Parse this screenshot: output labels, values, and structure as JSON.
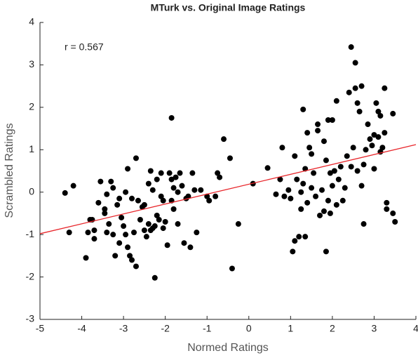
{
  "chart_data": {
    "type": "scatter",
    "title": "MTurk vs. Original Image Ratings",
    "xlabel": "Normed Ratings",
    "ylabel": "Scrambled Ratings",
    "annotation": "r = 0.567",
    "color": "#000000",
    "x": [
      -4.4,
      -4.3,
      -4.2,
      -3.9,
      -3.85,
      -3.8,
      -3.75,
      -3.7,
      -3.7,
      -3.6,
      -3.55,
      -3.45,
      -3.45,
      -3.4,
      -3.4,
      -3.35,
      -3.3,
      -3.25,
      -3.25,
      -3.2,
      -3.15,
      -3.1,
      -3.1,
      -3.05,
      -3.0,
      -2.95,
      -2.95,
      -2.9,
      -2.9,
      -2.85,
      -2.8,
      -2.8,
      -2.75,
      -2.7,
      -2.7,
      -2.65,
      -2.6,
      -2.55,
      -2.5,
      -2.5,
      -2.45,
      -2.4,
      -2.4,
      -2.35,
      -2.35,
      -2.3,
      -2.3,
      -2.25,
      -2.25,
      -2.2,
      -2.2,
      -2.15,
      -2.1,
      -2.1,
      -2.05,
      -2.05,
      -2.0,
      -1.95,
      -1.9,
      -1.85,
      -1.85,
      -1.85,
      -1.8,
      -1.8,
      -1.75,
      -1.7,
      -1.7,
      -1.65,
      -1.6,
      -1.55,
      -1.5,
      -1.45,
      -1.4,
      -1.35,
      -1.3,
      -1.25,
      -1.15,
      -1.0,
      -0.95,
      -0.8,
      -0.75,
      -0.7,
      -0.6,
      -0.45,
      -0.4,
      -0.25,
      0.1,
      0.45,
      0.65,
      0.75,
      0.8,
      0.85,
      0.95,
      1.0,
      1.05,
      1.1,
      1.1,
      1.15,
      1.2,
      1.25,
      1.25,
      1.3,
      1.3,
      1.35,
      1.35,
      1.4,
      1.4,
      1.45,
      1.5,
      1.5,
      1.55,
      1.6,
      1.65,
      1.65,
      1.7,
      1.75,
      1.8,
      1.8,
      1.85,
      1.85,
      1.9,
      1.9,
      1.95,
      1.95,
      2.0,
      2.0,
      2.05,
      2.1,
      2.1,
      2.15,
      2.2,
      2.25,
      2.3,
      2.35,
      2.4,
      2.45,
      2.45,
      2.5,
      2.55,
      2.55,
      2.6,
      2.6,
      2.65,
      2.7,
      2.7,
      2.75,
      2.75,
      2.8,
      2.85,
      2.9,
      2.95,
      3.0,
      3.0,
      3.05,
      3.1,
      3.1,
      3.15,
      3.15,
      3.2,
      3.25,
      3.25,
      3.3,
      3.3,
      3.45,
      3.45,
      3.5
    ],
    "values": [
      -0.02,
      -0.95,
      0.15,
      -1.55,
      -0.95,
      -0.65,
      -0.65,
      -0.9,
      -1.1,
      -0.25,
      0.25,
      -0.5,
      -0.4,
      -0.05,
      -0.95,
      -0.75,
      0.25,
      0.1,
      -1.0,
      -1.5,
      -0.3,
      -0.15,
      -1.2,
      -0.6,
      -0.8,
      0.0,
      -1.0,
      0.55,
      -1.3,
      -1.5,
      -0.15,
      -1.6,
      -0.95,
      0.8,
      -1.75,
      -0.2,
      -0.65,
      -0.35,
      -0.3,
      -0.9,
      -1.05,
      0.2,
      -0.75,
      0.5,
      -0.9,
      -0.85,
      0.05,
      -2.02,
      -0.8,
      0.3,
      -0.55,
      -0.65,
      0.45,
      -0.1,
      -0.85,
      -0.2,
      -0.7,
      -1.25,
      0.45,
      1.75,
      -0.2,
      0.3,
      0.1,
      -0.4,
      0.35,
      0.0,
      -0.75,
      0.45,
      0.15,
      -1.2,
      -0.15,
      -0.1,
      -1.3,
      0.45,
      0.05,
      -0.95,
      0.05,
      -0.1,
      -0.2,
      -0.1,
      0.45,
      0.35,
      1.25,
      0.8,
      -1.8,
      -0.75,
      0.2,
      0.57,
      -0.05,
      0.3,
      1.05,
      -0.1,
      0.05,
      -0.15,
      -1.4,
      -1.15,
      0.85,
      0.3,
      -1.05,
      -0.4,
      0.0,
      1.95,
      0.2,
      -1.05,
      0.55,
      1.4,
      -0.25,
      1.05,
      0.9,
      0.1,
      0.45,
      -0.1,
      1.6,
      1.45,
      -0.55,
      0.05,
      1.2,
      -0.45,
      0.75,
      -1.4,
      1.7,
      -0.2,
      0.45,
      -0.5,
      1.7,
      0.15,
      0.5,
      2.15,
      -0.3,
      0.3,
      0.6,
      -0.2,
      0.1,
      0.85,
      2.35,
      0.6,
      3.42,
      1.05,
      3.05,
      2.45,
      2.1,
      0.5,
      1.9,
      2.5,
      0.15,
      -0.75,
      0.65,
      1.0,
      1.6,
      1.25,
      1.1,
      1.35,
      0.55,
      2.1,
      1.9,
      1.3,
      1.8,
      0.95,
      1.05,
      2.45,
      1.4,
      -0.25,
      -0.4,
      1.85,
      -0.5,
      -0.7
    ],
    "fit_line": {
      "color": "#e8262b",
      "x": [
        -5,
        4
      ],
      "y": [
        -0.98,
        1.12
      ]
    },
    "xlim": [
      -5,
      4
    ],
    "xticks": [
      -5,
      -4,
      -3,
      -2,
      -1,
      0,
      1,
      2,
      3,
      4
    ],
    "ylim": [
      -3,
      4
    ],
    "yticks": [
      -3,
      -2,
      -1,
      0,
      1,
      2,
      3,
      4
    ]
  }
}
